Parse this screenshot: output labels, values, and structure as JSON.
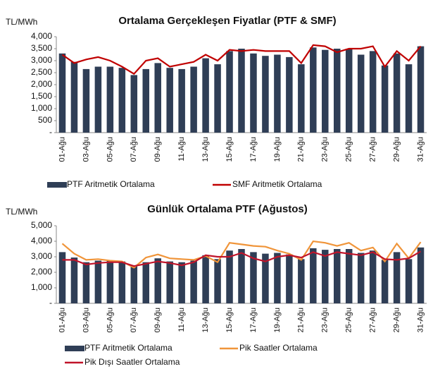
{
  "chart_data": [
    {
      "type": "bar-line",
      "title": "Ortalama Gerçekleşen Fiyatlar (PTF & SMF)",
      "y_label": "TL/MWh",
      "categories": [
        "01-Ağu",
        null,
        "03-Ağu",
        null,
        "05-Ağu",
        null,
        "07-Ağu",
        null,
        "09-Ağu",
        null,
        "11-Ağu",
        null,
        "13-Ağu",
        null,
        "15-Ağu",
        null,
        "17-Ağu",
        null,
        "19-Ağu",
        null,
        "21-Ağu",
        null,
        "23-Ağu",
        null,
        "25-Ağu",
        null,
        "27-Ağu",
        null,
        "29-Ağu",
        null,
        "31-Ağu"
      ],
      "series": [
        {
          "name": "PTF Aritmetik Ortalama",
          "type": "bar",
          "color": "#2f3e56",
          "values": [
            3300,
            2950,
            2650,
            2750,
            2750,
            2700,
            2400,
            2650,
            2900,
            2700,
            2650,
            2750,
            3100,
            2850,
            3400,
            3500,
            3300,
            3200,
            3250,
            3150,
            2850,
            3550,
            3450,
            3500,
            3500,
            3250,
            3400,
            2800,
            3300,
            2850,
            3600
          ]
        },
        {
          "name": "SMF Aritmetik Ortalama",
          "type": "line",
          "color": "#c00000",
          "values": [
            3250,
            2900,
            3050,
            3150,
            3000,
            2750,
            2450,
            3000,
            3100,
            2750,
            2850,
            2950,
            3250,
            3000,
            3450,
            3400,
            3450,
            3400,
            3400,
            3400,
            2900,
            3650,
            3600,
            3350,
            3500,
            3500,
            3600,
            2750,
            3400,
            3000,
            3600
          ]
        }
      ],
      "ylim": [
        0,
        4000
      ],
      "yticks": [
        {
          "value": 0,
          "label": "-"
        },
        500,
        {
          "value": 1000,
          "label": "1,000"
        },
        {
          "value": 1500,
          "label": "1,500"
        },
        {
          "value": 2000,
          "label": "2,000"
        },
        {
          "value": 2500,
          "label": "2,500"
        },
        {
          "value": 3000,
          "label": "3,000"
        },
        {
          "value": 3500,
          "label": "3,500"
        },
        {
          "value": 4000,
          "label": "4,000"
        }
      ]
    },
    {
      "type": "bar-line",
      "title": "Günlük Ortalama PTF (Ağustos)",
      "y_label": "TL/MWh",
      "categories": [
        "01-Ağu",
        null,
        "03-Ağu",
        null,
        "05-Ağu",
        null,
        "07-Ağu",
        null,
        "09-Ağu",
        null,
        "11-Ağu",
        null,
        "13-Ağu",
        null,
        "15-Ağu",
        null,
        "17-Ağu",
        null,
        "19-Ağu",
        null,
        "21-Ağu",
        null,
        "23-Ağu",
        null,
        "25-Ağu",
        null,
        "27-Ağu",
        null,
        "29-Ağu",
        null,
        "31-Ağu"
      ],
      "series": [
        {
          "name": "PTF Aritmetik Ortalama",
          "type": "bar",
          "color": "#2f3e56",
          "values": [
            3300,
            2950,
            2650,
            2750,
            2750,
            2700,
            2400,
            2650,
            2900,
            2700,
            2650,
            2750,
            3100,
            2850,
            3400,
            3500,
            3300,
            3200,
            3250,
            3150,
            2850,
            3550,
            3450,
            3500,
            3500,
            3250,
            3400,
            2800,
            3300,
            2850,
            3600
          ]
        },
        {
          "name": "Pik Saatler Ortalama",
          "type": "line",
          "color": "#f0953a",
          "values": [
            3850,
            3200,
            2800,
            2850,
            2750,
            2700,
            2300,
            2950,
            3150,
            2900,
            2850,
            2800,
            3050,
            2650,
            3900,
            3800,
            3700,
            3650,
            3400,
            3200,
            2800,
            4000,
            3900,
            3700,
            3900,
            3400,
            3600,
            2700,
            3850,
            2900,
            3950
          ]
        },
        {
          "name": "Pik Dışı Saatler Ortalama",
          "type": "line",
          "color": "#c0142a",
          "values": [
            2800,
            2800,
            2500,
            2600,
            2650,
            2650,
            2400,
            2550,
            2700,
            2600,
            2450,
            2650,
            3100,
            3000,
            3000,
            3250,
            2900,
            2700,
            3000,
            3100,
            2950,
            3300,
            3050,
            3300,
            3200,
            3100,
            3300,
            2850,
            2800,
            2900,
            3350
          ]
        }
      ],
      "ylim": [
        0,
        5000
      ],
      "yticks": [
        {
          "value": 0,
          "label": "-"
        },
        {
          "value": 1000,
          "label": "1,000"
        },
        {
          "value": 2000,
          "label": "2,000"
        },
        {
          "value": 3000,
          "label": "3,000"
        },
        {
          "value": 4000,
          "label": "4,000"
        },
        {
          "value": 5000,
          "label": "5,000"
        }
      ]
    }
  ]
}
